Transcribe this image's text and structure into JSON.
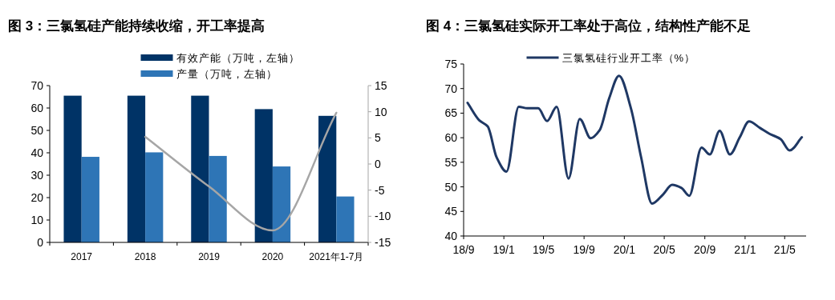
{
  "chart_data": [
    {
      "type": "bar",
      "title": "图 3：三氯氢硅产能持续收缩，开工率提高",
      "categories": [
        "2017",
        "2018",
        "2019",
        "2020",
        "2021年1-7月"
      ],
      "series": [
        {
          "name": "有效产能（万吨，左轴）",
          "color": "#003366",
          "values": [
            65.5,
            65.5,
            65.5,
            59.5,
            56.5
          ]
        },
        {
          "name": "产量（万吨，左轴）",
          "color": "#2e75b6",
          "values": [
            38.2,
            40.2,
            38.6,
            33.9,
            20.5
          ]
        },
        {
          "type": "line",
          "axis": "y2",
          "color": "#a6a6a6",
          "values": [
            null,
            5.2,
            -4.3,
            -12.7,
            9.8
          ]
        }
      ],
      "ylim": [
        0,
        70
      ],
      "yticks": [
        0,
        10,
        20,
        30,
        40,
        50,
        60,
        70
      ],
      "y2lim": [
        -15,
        15
      ],
      "y2ticks": [
        -15,
        -10,
        -5,
        0,
        5,
        10,
        15
      ],
      "legend": "top",
      "grid": false
    },
    {
      "type": "line",
      "title": "图 4：三氯氢硅实际开工率处于高位，结构性产能不足",
      "series": [
        {
          "name": "三氯氢硅行业开工率（%）",
          "color": "#1f3864",
          "x": [
            "2018-09-13",
            "2018-10-19",
            "2018-11-13",
            "2018-12-10",
            "2019-01-09",
            "2019-02-15",
            "2019-03-13",
            "2019-04-15",
            "2019-05-12",
            "2019-06-10",
            "2019-07-16",
            "2019-08-19",
            "2019-09-21",
            "2019-10-18",
            "2019-11-16",
            "2019-12-16",
            "2020-01-21",
            "2020-02-21",
            "2020-03-25",
            "2020-04-28",
            "2020-05-25",
            "2020-06-22",
            "2020-07-16",
            "2020-08-22",
            "2020-09-16",
            "2020-10-16",
            "2020-11-16",
            "2020-12-16",
            "2021-01-13",
            "2021-02-15",
            "2021-03-16",
            "2021-04-19",
            "2021-05-16",
            "2021-06-22"
          ],
          "values": [
            67.1,
            63.5,
            62.3,
            56,
            53.1,
            66.3,
            66,
            66,
            63.4,
            66.3,
            51.7,
            63.8,
            59.9,
            61.5,
            68,
            72.6,
            66,
            56,
            46.6,
            48.5,
            50.4,
            49.8,
            48.2,
            58,
            56.6,
            61.4,
            56.6,
            60.1,
            63.3,
            62,
            60.8,
            59.7,
            57.4,
            60.1
          ]
        }
      ],
      "xlim": [
        "2018-09",
        "2021-07-05"
      ],
      "xticks": [
        {
          "value": "2018-09",
          "label": "18/9"
        },
        {
          "value": "2019-01",
          "label": "19/1"
        },
        {
          "value": "2019-05",
          "label": "19/5"
        },
        {
          "value": "2019-09",
          "label": "19/9"
        },
        {
          "value": "2020-01",
          "label": "20/1"
        },
        {
          "value": "2020-05",
          "label": "20/5"
        },
        {
          "value": "2020-09",
          "label": "20/9"
        },
        {
          "value": "2021-01",
          "label": "21/1"
        },
        {
          "value": "2021-05",
          "label": "21/5"
        }
      ],
      "ylim": [
        40,
        75
      ],
      "yticks": [
        40,
        45,
        50,
        55,
        60,
        65,
        70,
        75
      ],
      "legend": "top",
      "grid": false
    }
  ]
}
